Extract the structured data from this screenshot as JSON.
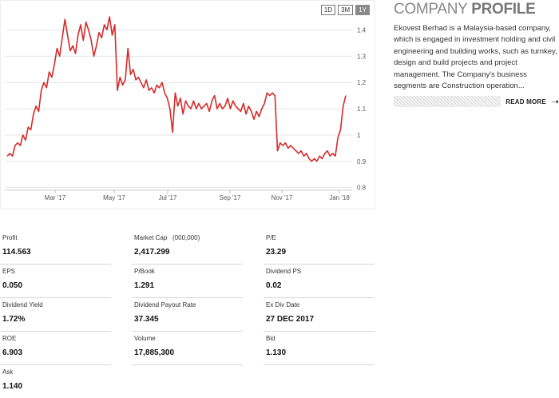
{
  "range_buttons": [
    "1D",
    "3M",
    "1Y"
  ],
  "active_range": "1Y",
  "chart_data": {
    "type": "line",
    "x_ticks": [
      "Mar '17",
      "May '17",
      "Jul '17",
      "Sep '17",
      "Nov '17",
      "Jan '18"
    ],
    "y_ticks": [
      "1.4",
      "1.3",
      "1.2",
      "1.1",
      "1",
      "0.9",
      "0.8"
    ],
    "ylim": [
      0.8,
      1.4
    ],
    "grid": "horizontal",
    "line_color": "#d62b2b",
    "series": [
      {
        "values": [
          0.92,
          0.93,
          0.92,
          0.96,
          0.97,
          0.96,
          1.0,
          0.98,
          1.03,
          1.02,
          1.08,
          1.11,
          1.09,
          1.17,
          1.2,
          1.18,
          1.24,
          1.22,
          1.27,
          1.33,
          1.3,
          1.37,
          1.44,
          1.38,
          1.32,
          1.34,
          1.31,
          1.38,
          1.42,
          1.36,
          1.43,
          1.4,
          1.36,
          1.3,
          1.34,
          1.39,
          1.37,
          1.42,
          1.4,
          1.45,
          1.38,
          1.42,
          1.17,
          1.22,
          1.19,
          1.21,
          1.33,
          1.23,
          1.25,
          1.21,
          1.22,
          1.2,
          1.18,
          1.21,
          1.17,
          1.18,
          1.16,
          1.19,
          1.18,
          1.2,
          1.16,
          1.14,
          1.1,
          1.01,
          1.16,
          1.11,
          1.14,
          1.08,
          1.13,
          1.11,
          1.1,
          1.13,
          1.1,
          1.12,
          1.1,
          1.11,
          1.12,
          1.09,
          1.13,
          1.15,
          1.1,
          1.12,
          1.1,
          1.11,
          1.14,
          1.1,
          1.13,
          1.11,
          1.1,
          1.09,
          1.12,
          1.08,
          1.11,
          1.09,
          1.06,
          1.09,
          1.07,
          1.1,
          1.12,
          1.16,
          1.15,
          1.16,
          1.15,
          0.94,
          0.97,
          0.96,
          0.97,
          0.95,
          0.96,
          0.95,
          0.94,
          0.93,
          0.94,
          0.92,
          0.93,
          0.91,
          0.9,
          0.91,
          0.9,
          0.92,
          0.91,
          0.93,
          0.94,
          0.92,
          0.93,
          0.92,
          0.99,
          1.02,
          1.11,
          1.15
        ]
      }
    ]
  },
  "profile": {
    "title_light": "COMPANY ",
    "title_bold": "PROFILE",
    "description": "Ekovest Berhad is a Malaysia-based company, which is engaged in investment holding and civil engineering and building works, such as turnkey, design and build projects and project management. The Company's business segments are Construction operation...",
    "read_more": "READ MORE",
    "arrow_icon": "arrow-right-icon"
  },
  "stats": [
    {
      "label": "Profit",
      "value": "114.563"
    },
    {
      "label": "Market Cap   (000,000)",
      "value": "2,417.299"
    },
    {
      "label": "P/E",
      "value": "23.29"
    },
    {
      "label": "EPS",
      "value": "0.050"
    },
    {
      "label": "P/Book",
      "value": "1.291"
    },
    {
      "label": "Dividend PS",
      "value": "0.02"
    },
    {
      "label": "Dividend Yield",
      "value": "1.72%"
    },
    {
      "label": "Dividend Payout Rate",
      "value": "37.345"
    },
    {
      "label": "Ex Div Date",
      "value": "27 DEC 2017"
    },
    {
      "label": "ROE",
      "value": "6.903"
    },
    {
      "label": "Volume",
      "value": "17,885,300"
    },
    {
      "label": "Bid",
      "value": "1.130"
    },
    {
      "label": "Ask",
      "value": "1.140"
    }
  ]
}
